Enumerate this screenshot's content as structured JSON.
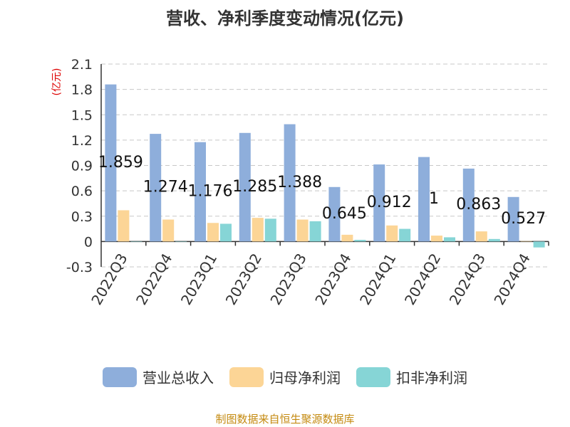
{
  "footer": "制图数据来自恒生聚源数据库",
  "chart_data": {
    "type": "bar",
    "title": "营收、净利季度变动情况(亿元)",
    "ylabel": "(亿元)",
    "ylim": [
      -0.3,
      2.1
    ],
    "yticks": [
      "2.1",
      "1.8",
      "1.5",
      "1.2",
      "0.9",
      "0.6",
      "0.3",
      "0",
      "-0.3"
    ],
    "grid": true,
    "legend_position": "bottom",
    "categories": [
      "2022Q3",
      "2022Q4",
      "2023Q1",
      "2023Q2",
      "2023Q3",
      "2023Q4",
      "2024Q1",
      "2024Q2",
      "2024Q3",
      "2024Q4"
    ],
    "series": [
      {
        "name": "营业总收入",
        "color": "#8eaedb",
        "values": [
          1.859,
          1.274,
          1.176,
          1.285,
          1.388,
          0.645,
          0.912,
          1,
          0.863,
          0.527
        ],
        "labels": [
          "1.859",
          "1.274",
          "1.176",
          "1.285",
          "1.388",
          "0.645",
          "0.912",
          "1",
          "0.863",
          "0.527"
        ]
      },
      {
        "name": "归母净利润",
        "color": "#fcd596",
        "values": [
          0.37,
          0.26,
          0.22,
          0.28,
          0.26,
          0.08,
          0.19,
          0.07,
          0.12,
          0.005
        ]
      },
      {
        "name": "扣非净利润",
        "color": "#86d5d6",
        "values": [
          0.0,
          0.0,
          0.21,
          0.27,
          0.24,
          0.02,
          0.15,
          0.05,
          0.03,
          -0.07
        ]
      }
    ]
  }
}
